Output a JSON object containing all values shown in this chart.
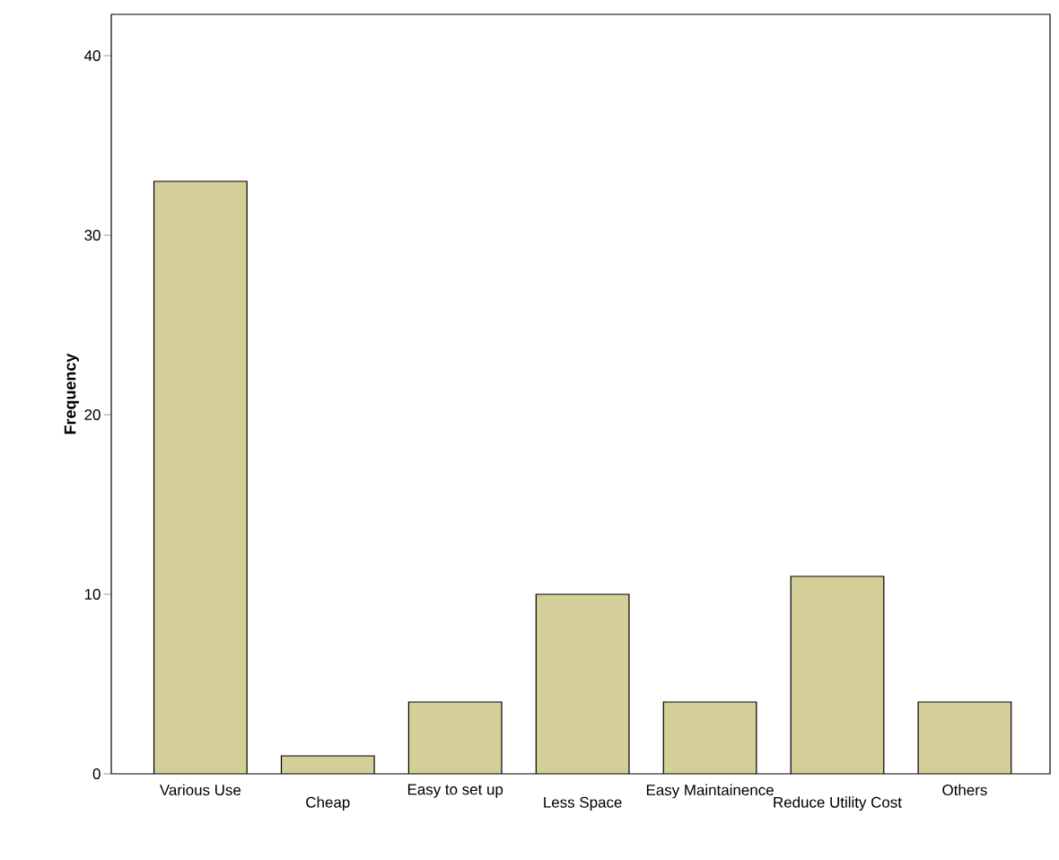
{
  "chart_data": {
    "type": "bar",
    "ylabel": "Frequency",
    "categories": [
      "Various Use",
      "Cheap",
      "Easy to set up",
      "Less Space",
      "Easy Maintainence",
      "Reduce Utility Cost",
      "Others"
    ],
    "values": [
      33,
      1,
      4,
      10,
      4,
      11,
      4
    ],
    "color": "#d4cf98",
    "ylim": [
      0,
      42.3
    ],
    "yticks": [
      0,
      10,
      20,
      30,
      40
    ]
  }
}
